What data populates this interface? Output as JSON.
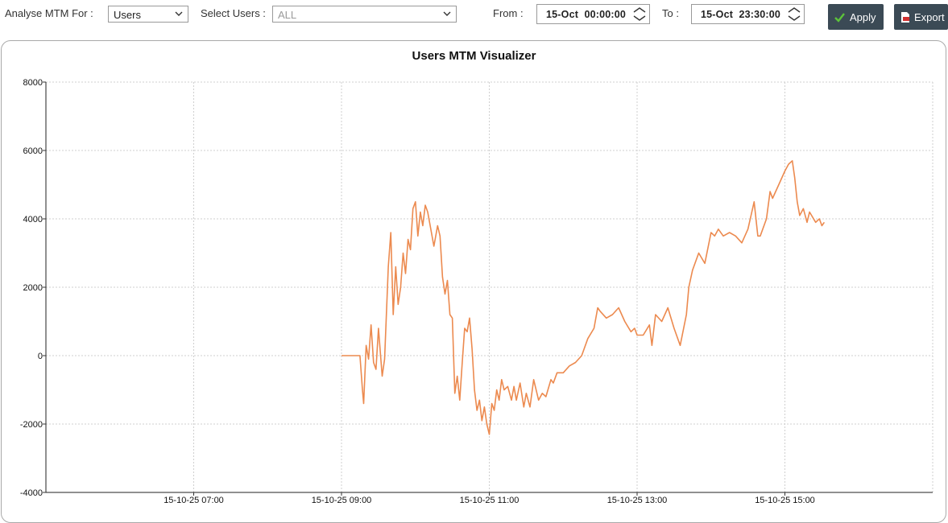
{
  "toolbar": {
    "analyse_label": "Analyse MTM For :",
    "analyse_value": "Users",
    "select_users_label": "Select Users :",
    "select_users_value": "ALL",
    "from_label": "From :",
    "from_value": "15-Oct  00:00:00",
    "to_label": "To :",
    "to_value": "15-Oct  23:30:00",
    "apply_label": "Apply",
    "export_label": "Export",
    "icons": {
      "analyse_dropdown": "chevron-down-icon",
      "users_dropdown": "chevron-down-icon",
      "from_spinner": "spinner-icon",
      "to_spinner": "spinner-icon",
      "apply": "checkmark-icon",
      "export": "export-file-icon"
    }
  },
  "colors": {
    "line": "#ec8a4f",
    "apply_button": "#3b4a55",
    "apply_check": "#5cc33a"
  },
  "chart_data": {
    "type": "line",
    "title": "Users MTM Visualizer",
    "ylim": [
      -4000,
      8000
    ],
    "yticks": [
      -4000,
      -2000,
      0,
      2000,
      4000,
      6000,
      8000
    ],
    "xlim": [
      "15-10-25 05:00",
      "15-10-25 17:00"
    ],
    "xticks": [
      "15-10-25 07:00",
      "15-10-25 09:00",
      "15-10-25 11:00",
      "15-10-25 13:00",
      "15-10-25 15:00"
    ],
    "grid": true,
    "series": [
      {
        "x": [
          "09:00",
          "09:15",
          "09:17",
          "09:18",
          "09:20",
          "09:22",
          "09:24",
          "09:26",
          "09:28",
          "09:30",
          "09:33",
          "09:35",
          "09:38",
          "09:40",
          "09:42",
          "09:44",
          "09:46",
          "09:48",
          "09:50",
          "09:52",
          "09:54",
          "09:56",
          "09:58",
          "10:00",
          "10:02",
          "10:04",
          "10:06",
          "10:08",
          "10:10",
          "10:12",
          "10:15",
          "10:18",
          "10:20",
          "10:22",
          "10:24",
          "10:26",
          "10:28",
          "10:30",
          "10:32",
          "10:34",
          "10:36",
          "10:38",
          "10:40",
          "10:42",
          "10:44",
          "10:46",
          "10:48",
          "10:50",
          "10:52",
          "10:54",
          "10:56",
          "10:58",
          "11:00",
          "11:02",
          "11:04",
          "11:06",
          "11:08",
          "11:10",
          "11:12",
          "11:15",
          "11:18",
          "11:20",
          "11:22",
          "11:25",
          "11:28",
          "11:30",
          "11:33",
          "11:36",
          "11:40",
          "11:43",
          "11:46",
          "11:50",
          "11:52",
          "11:55",
          "12:00",
          "12:05",
          "12:10",
          "12:15",
          "12:20",
          "12:25",
          "12:28",
          "12:30",
          "12:35",
          "12:40",
          "12:45",
          "12:50",
          "12:55",
          "12:58",
          "13:00",
          "13:05",
          "13:10",
          "13:12",
          "13:15",
          "13:20",
          "13:25",
          "13:30",
          "13:35",
          "13:40",
          "13:42",
          "13:45",
          "13:50",
          "13:55",
          "14:00",
          "14:03",
          "14:06",
          "14:10",
          "14:15",
          "14:20",
          "14:25",
          "14:30",
          "14:35",
          "14:38",
          "14:40",
          "14:45",
          "14:48",
          "14:50",
          "14:55",
          "15:00",
          "15:03",
          "15:06",
          "15:08",
          "15:10",
          "15:12",
          "15:15",
          "15:18",
          "15:20",
          "15:25",
          "15:28",
          "15:30",
          "15:32"
        ],
        "values": [
          0,
          0,
          -1000,
          -1400,
          300,
          -100,
          900,
          -200,
          -400,
          800,
          -600,
          -100,
          2600,
          3600,
          1200,
          2600,
          1500,
          2000,
          3000,
          2400,
          3400,
          3100,
          4300,
          4500,
          3500,
          4200,
          3800,
          4400,
          4200,
          3800,
          3200,
          3800,
          3500,
          2300,
          1800,
          2200,
          1200,
          1100,
          -1100,
          -600,
          -1300,
          -200,
          800,
          700,
          1100,
          200,
          -1000,
          -1600,
          -1300,
          -1900,
          -1500,
          -2000,
          -2300,
          -1400,
          -1600,
          -1000,
          -1300,
          -700,
          -1000,
          -900,
          -1300,
          -900,
          -1300,
          -800,
          -1500,
          -1100,
          -1500,
          -700,
          -1300,
          -1100,
          -1200,
          -700,
          -800,
          -500,
          -500,
          -300,
          -200,
          0,
          500,
          800,
          1400,
          1300,
          1100,
          1200,
          1400,
          1000,
          700,
          800,
          600,
          600,
          900,
          300,
          1200,
          1000,
          1400,
          800,
          300,
          1200,
          2000,
          2500,
          3000,
          2700,
          3600,
          3500,
          3700,
          3500,
          3600,
          3500,
          3300,
          3700,
          4500,
          3500,
          3500,
          4000,
          4800,
          4600,
          5000,
          5400,
          5600,
          5700,
          5200,
          4500,
          4100,
          4300,
          3900,
          4200,
          3900,
          4000,
          3800,
          3900
        ]
      }
    ]
  }
}
